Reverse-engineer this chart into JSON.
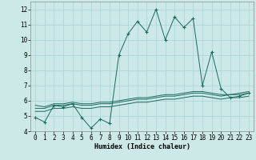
{
  "title": "",
  "xlabel": "Humidex (Indice chaleur)",
  "ylabel": "",
  "background_color": "#cce9e8",
  "grid_color": "#aad4d2",
  "line_color": "#1a6b5a",
  "x_values": [
    0,
    1,
    2,
    3,
    4,
    5,
    6,
    7,
    8,
    9,
    10,
    11,
    12,
    13,
    14,
    15,
    16,
    17,
    18,
    19,
    20,
    21,
    22,
    23
  ],
  "y_main": [
    4.9,
    4.6,
    5.7,
    5.6,
    5.8,
    4.9,
    4.2,
    4.8,
    4.5,
    9.0,
    10.4,
    11.2,
    10.5,
    12.0,
    10.0,
    11.5,
    10.8,
    11.4,
    7.0,
    9.2,
    6.8,
    6.2,
    6.3,
    6.5
  ],
  "y_line1": [
    5.7,
    5.6,
    5.8,
    5.8,
    5.9,
    5.8,
    5.8,
    5.9,
    5.9,
    6.0,
    6.1,
    6.2,
    6.2,
    6.3,
    6.4,
    6.4,
    6.5,
    6.6,
    6.6,
    6.5,
    6.4,
    6.4,
    6.5,
    6.6
  ],
  "y_line2": [
    5.5,
    5.5,
    5.7,
    5.7,
    5.8,
    5.7,
    5.7,
    5.8,
    5.8,
    5.9,
    6.0,
    6.1,
    6.1,
    6.2,
    6.3,
    6.3,
    6.4,
    6.5,
    6.5,
    6.4,
    6.3,
    6.4,
    6.4,
    6.5
  ],
  "y_line3": [
    5.3,
    5.3,
    5.5,
    5.5,
    5.6,
    5.5,
    5.5,
    5.6,
    5.6,
    5.7,
    5.8,
    5.9,
    5.9,
    6.0,
    6.1,
    6.1,
    6.2,
    6.3,
    6.3,
    6.2,
    6.1,
    6.2,
    6.2,
    6.3
  ],
  "ylim": [
    4,
    12.5
  ],
  "yticks": [
    4,
    5,
    6,
    7,
    8,
    9,
    10,
    11,
    12
  ],
  "xlim": [
    -0.5,
    23.5
  ],
  "xticks": [
    0,
    1,
    2,
    3,
    4,
    5,
    6,
    7,
    8,
    9,
    10,
    11,
    12,
    13,
    14,
    15,
    16,
    17,
    18,
    19,
    20,
    21,
    22,
    23
  ],
  "xlabel_fontsize": 6.0,
  "tick_fontsize": 5.5
}
